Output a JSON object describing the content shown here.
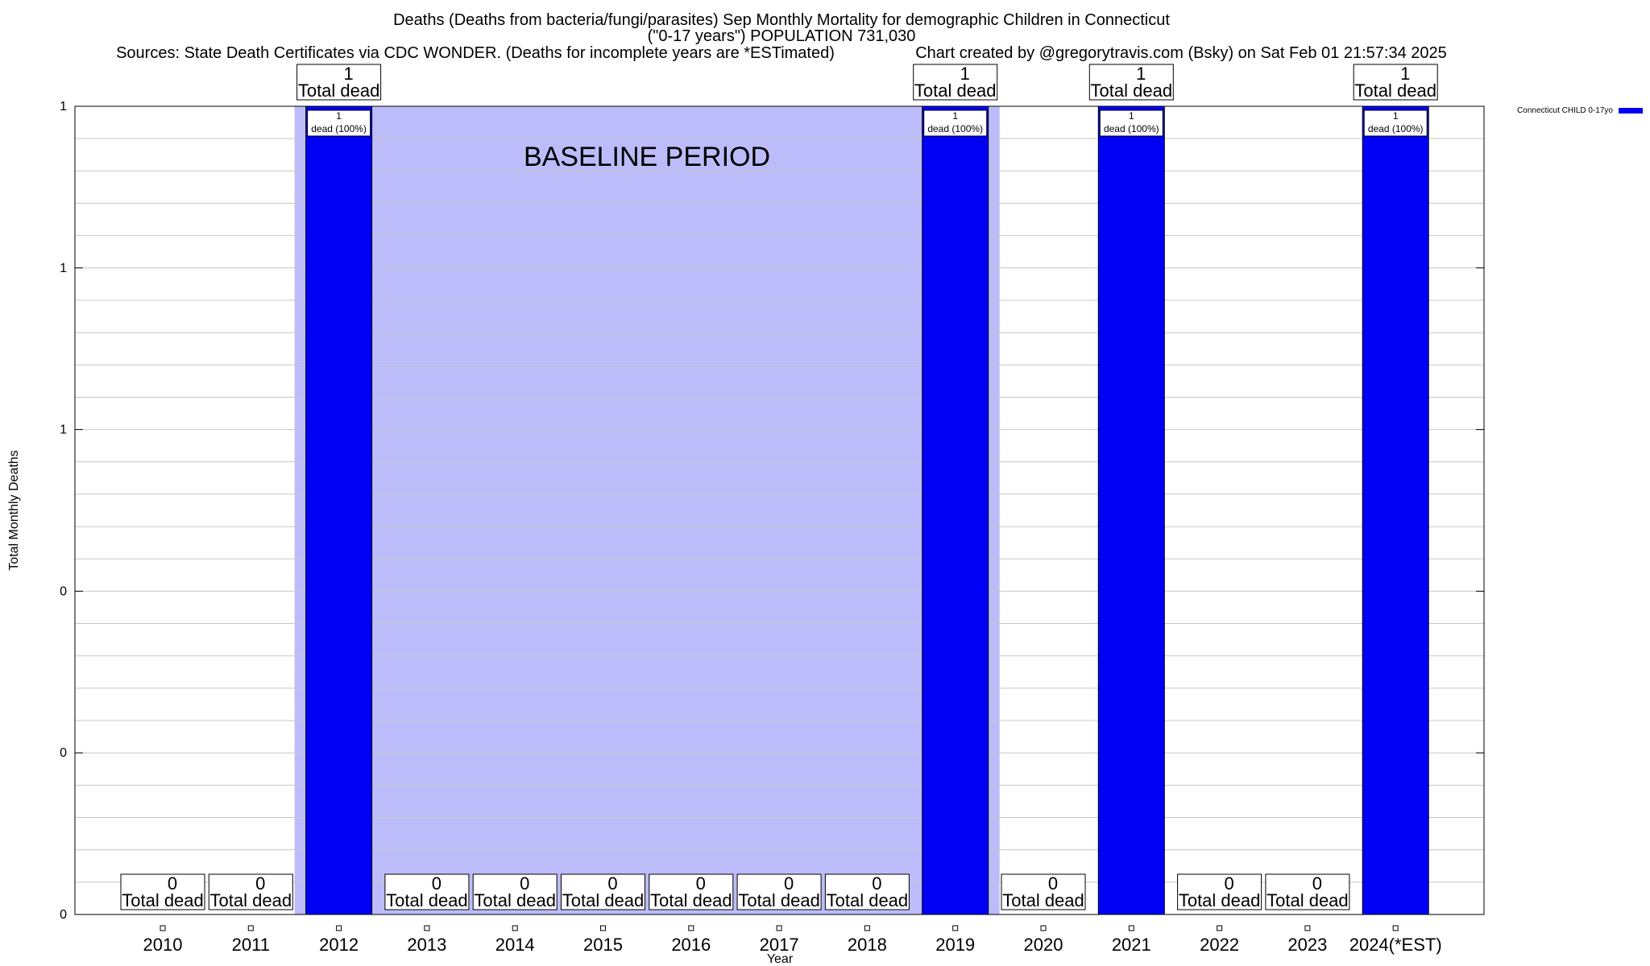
{
  "header": {
    "title_line1": "Deaths (Deaths from bacteria/fungi/parasites) Sep Monthly Mortality for demographic Children in Connecticut",
    "title_line2": "(\"0-17 years\") POPULATION 731,030",
    "sources": "Sources: State Death Certificates via CDC WONDER. (Deaths for incomplete years are *ESTimated)",
    "credit": "Chart created by @gregorytravis.com (Bsky) on Sat Feb 01 21:57:34 2025"
  },
  "chart_data": {
    "type": "bar",
    "categories": [
      "2010",
      "2011",
      "2012",
      "2013",
      "2014",
      "2015",
      "2016",
      "2017",
      "2018",
      "2019",
      "2020",
      "2021",
      "2022",
      "2023",
      "2024(*EST)"
    ],
    "series": [
      {
        "name": "Connecticut CHILD 0-17yo",
        "values": [
          0,
          0,
          1,
          0,
          0,
          0,
          0,
          0,
          0,
          1,
          0,
          1,
          0,
          0,
          1
        ],
        "color": "#0000f5"
      }
    ],
    "total_labels": [
      "0",
      "0",
      "1",
      "0",
      "0",
      "0",
      "0",
      "0",
      "0",
      "1",
      "0",
      "1",
      "0",
      "0",
      "1"
    ],
    "total_caption": "Total dead",
    "bar_labels": [
      "",
      "",
      "1\ndead (100%)",
      "",
      "",
      "",
      "",
      "",
      "",
      "1\ndead (100%)",
      "",
      "1\ndead (100%)",
      "",
      "",
      "1\ndead (100%)"
    ],
    "xlabel": "Year",
    "ylabel": "Total Monthly Deaths",
    "ylim": [
      0,
      1
    ],
    "y_tick_labels": [
      "0",
      "0",
      "0",
      "1",
      "1",
      "1"
    ],
    "grid": true,
    "legend": {
      "position": "top-right",
      "label": "Connecticut CHILD 0-17yo"
    },
    "baseline": {
      "label": "BASELINE PERIOD",
      "start_category": "2012",
      "end_category": "2019",
      "color": "#bcbcfa"
    }
  }
}
